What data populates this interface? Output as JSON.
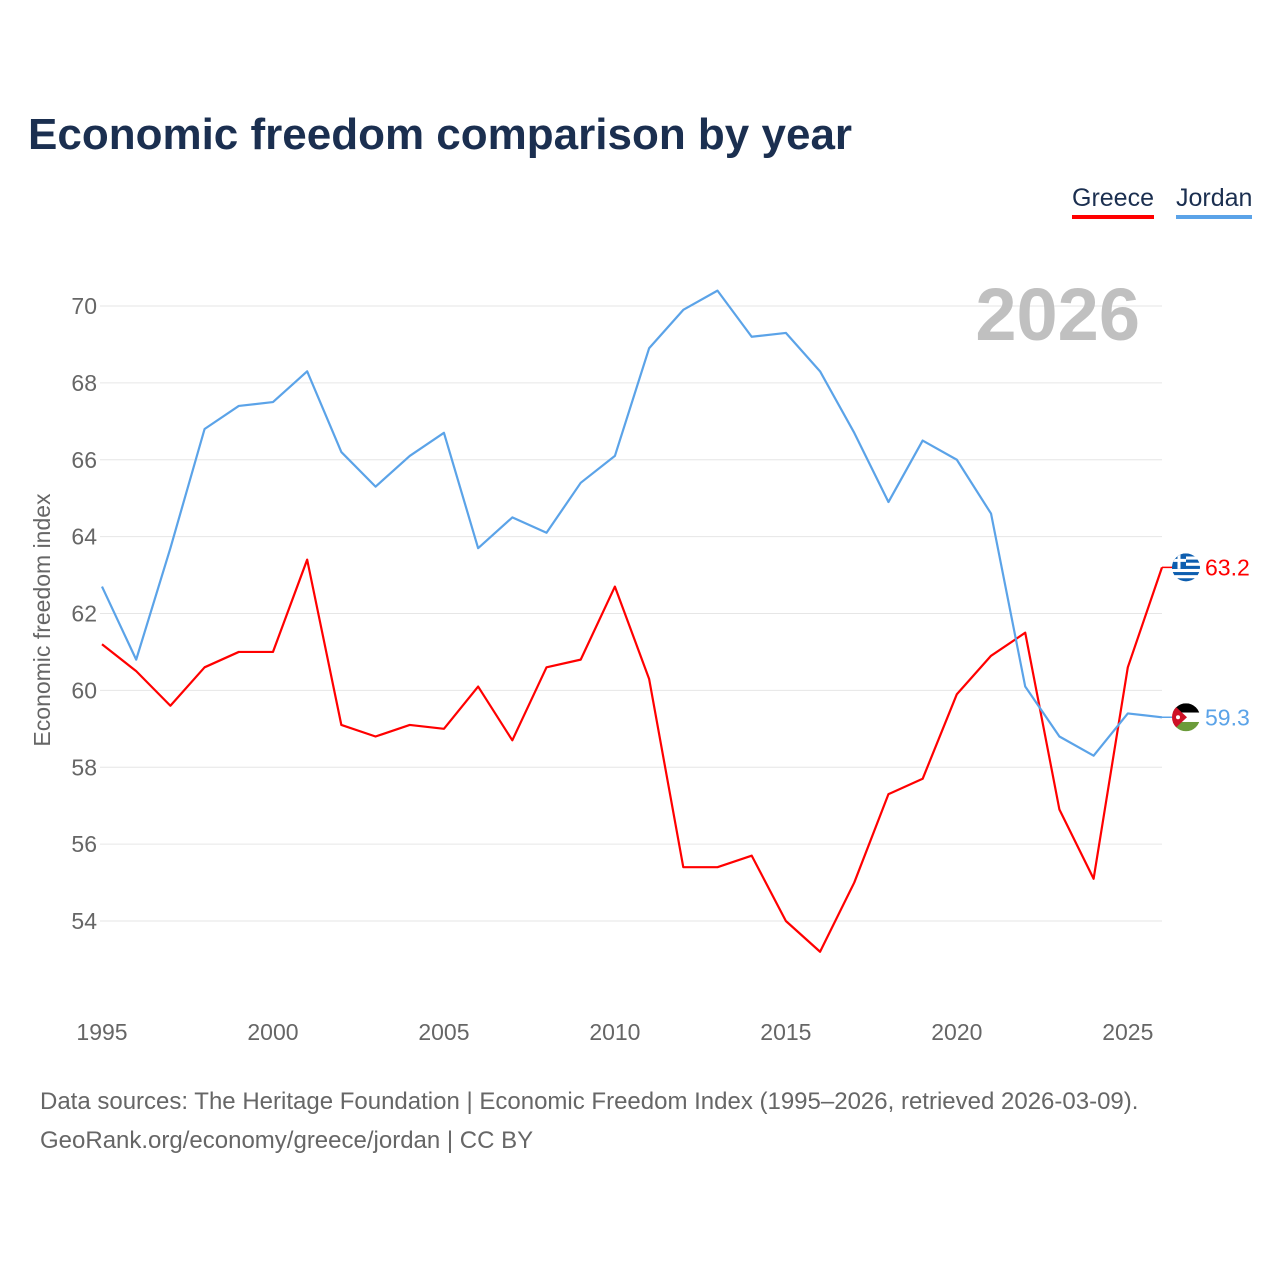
{
  "title": "Economic freedom comparison by year",
  "watermark_year": "2026",
  "footer": {
    "line1": "Data sources: The Heritage Foundation | Economic Freedom Index (1995–2026, retrieved 2026-03-09).",
    "line2": "GeoRank.org/economy/greece/jordan | CC BY"
  },
  "chart_data": {
    "type": "line",
    "title": "Economic freedom comparison by year",
    "xlabel": "",
    "ylabel": "Economic freedom index",
    "xlim": [
      1995,
      2026
    ],
    "ylim": [
      52,
      71
    ],
    "yticks": [
      54,
      56,
      58,
      60,
      62,
      64,
      66,
      68,
      70
    ],
    "xticks": [
      1995,
      2000,
      2005,
      2010,
      2015,
      2020,
      2025
    ],
    "grid": true,
    "legend_position": "top-right",
    "x": [
      1995,
      1996,
      1997,
      1998,
      1999,
      2000,
      2001,
      2002,
      2003,
      2004,
      2005,
      2006,
      2007,
      2008,
      2009,
      2010,
      2011,
      2012,
      2013,
      2014,
      2015,
      2016,
      2017,
      2018,
      2019,
      2020,
      2021,
      2022,
      2023,
      2024,
      2025,
      2026
    ],
    "series": [
      {
        "name": "Greece",
        "color": "#ff0000",
        "end_label": "63.2",
        "values": [
          61.2,
          60.5,
          59.6,
          60.6,
          61.0,
          61.0,
          63.4,
          59.1,
          58.8,
          59.1,
          59.0,
          60.1,
          58.7,
          60.6,
          60.8,
          62.7,
          60.3,
          55.4,
          55.4,
          55.7,
          54.0,
          53.2,
          55.0,
          57.3,
          57.7,
          59.9,
          60.9,
          61.5,
          56.9,
          55.1,
          60.6,
          63.2
        ]
      },
      {
        "name": "Jordan",
        "color": "#5ba3e8",
        "end_label": "59.3",
        "values": [
          62.7,
          60.8,
          63.7,
          66.8,
          67.4,
          67.5,
          68.3,
          66.2,
          65.3,
          66.1,
          66.7,
          63.7,
          64.5,
          64.1,
          65.4,
          66.1,
          68.9,
          69.9,
          70.4,
          69.2,
          69.3,
          68.3,
          66.7,
          64.9,
          66.5,
          66.0,
          64.6,
          60.1,
          58.8,
          58.3,
          59.4,
          59.3
        ]
      }
    ]
  }
}
